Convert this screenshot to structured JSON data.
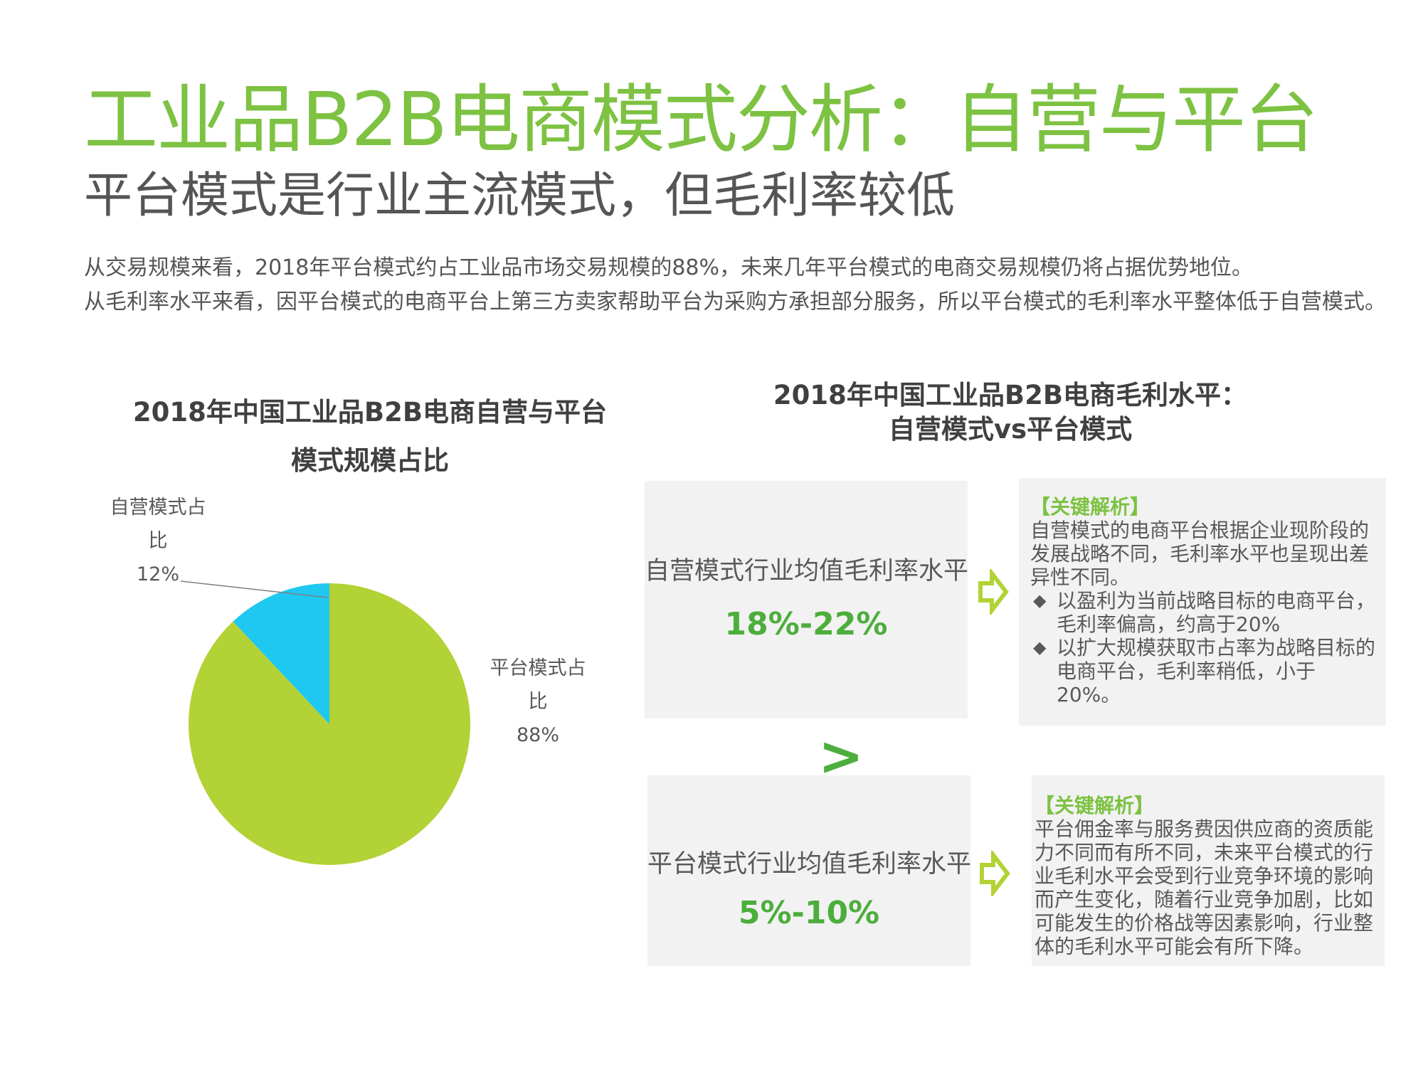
{
  "header": {
    "title": "工业品B2B电商模式分析：自营与平台",
    "subtitle": "平台模式是行业主流模式，但毛利率较低"
  },
  "intro": {
    "line1": "从交易规模来看，2018年平台模式约占工业品市场交易规模的88%，未来几年平台模式的电商交易规模仍将占据优势地位。",
    "line2": "从毛利率水平来看，因平台模式的电商平台上第三方卖家帮助平台为采购方承担部分服务，所以平台模式的毛利率水平整体低于自营模式。"
  },
  "chart_data": {
    "type": "pie",
    "title": "2018年中国工业品B2B电商自营与平台模式规模占比",
    "categories": [
      "平台模式占比",
      "自营模式占比"
    ],
    "values": [
      88,
      12
    ],
    "value_labels": [
      "88%",
      "12%"
    ],
    "colors": [
      "#b2d235",
      "#1ec8f0"
    ],
    "label_lines": {
      "self": [
        "自营模式占",
        "比",
        "12%"
      ],
      "platform": [
        "平台模式占",
        "比",
        "88%"
      ]
    }
  },
  "comparison": {
    "title_line1": "2018年中国工业品B2B电商毛利水平：",
    "title_line2": "自营模式vs平台模式",
    "self": {
      "label": "自营模式行业均值毛利率水平",
      "value": "18%-22%"
    },
    "compare_symbol": ">",
    "platform": {
      "label": "平台模式行业均值毛利率水平",
      "value": "5%-10%"
    }
  },
  "notes": {
    "self": {
      "heading": "【关键解析】",
      "text": "自营模式的电商平台根据企业现阶段的发展战略不同，毛利率水平也呈现出差异性不同。",
      "bullets": [
        "以盈利为当前战略目标的电商平台，毛利率偏高，约高于20%",
        "以扩大规模获取市占率为战略目标的电商平台，毛利率稍低，小于20%。"
      ]
    },
    "platform": {
      "heading": "【关键解析】",
      "text": "平台佣金率与服务费因供应商的资质能力不同而有所不同，未来平台模式的行业毛利水平会受到行业竞争环境的影响而产生变化，随着行业竞争加剧，比如可能发生的价格战等因素影响，行业整体的毛利水平可能会有所下降。"
    }
  },
  "icons": {
    "arrow": "hollow-right-arrow-icon",
    "bullet": "diamond-bullet-icon",
    "arrow_color": "#b2d235"
  }
}
